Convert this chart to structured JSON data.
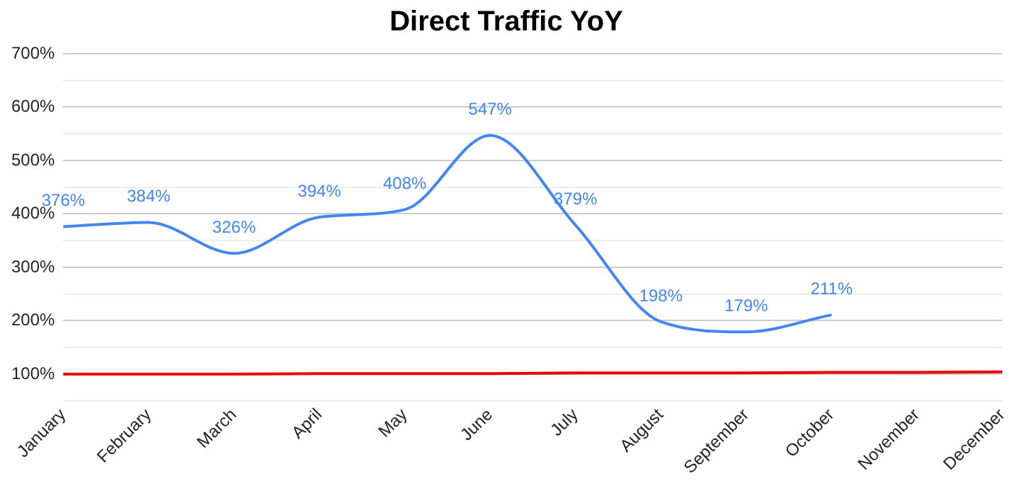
{
  "chart_data": {
    "type": "line",
    "title": "Direct Traffic YoY",
    "categories": [
      "January",
      "February",
      "March",
      "April",
      "May",
      "June",
      "July",
      "August",
      "September",
      "October",
      "November",
      "December"
    ],
    "series": [
      {
        "color": "#4285f4",
        "values": [
          376,
          384,
          326,
          394,
          408,
          547,
          379,
          198,
          179,
          211,
          null,
          null
        ],
        "value_labels": [
          "376%",
          "384%",
          "326%",
          "394%",
          "408%",
          "547%",
          "379%",
          "198%",
          "179%",
          "211%",
          null,
          null
        ]
      },
      {
        "color": "#ea0000",
        "values": [
          100,
          100,
          100,
          101,
          101,
          101,
          102,
          102,
          102,
          103,
          103,
          104
        ]
      }
    ],
    "ylim": [
      50,
      700
    ],
    "yticks": [
      {
        "value": 50,
        "label": null
      },
      {
        "value": 100,
        "label": "100%"
      },
      {
        "value": 150,
        "label": null
      },
      {
        "value": 200,
        "label": "200%"
      },
      {
        "value": 250,
        "label": null
      },
      {
        "value": 300,
        "label": "300%"
      },
      {
        "value": 350,
        "label": null
      },
      {
        "value": 400,
        "label": "400%"
      },
      {
        "value": 450,
        "label": null
      },
      {
        "value": 500,
        "label": "500%"
      },
      {
        "value": 550,
        "label": null
      },
      {
        "value": 600,
        "label": "600%"
      },
      {
        "value": 650,
        "label": null
      },
      {
        "value": 700,
        "label": "700%"
      }
    ],
    "grid": "y",
    "legend": false,
    "marker": "none"
  }
}
